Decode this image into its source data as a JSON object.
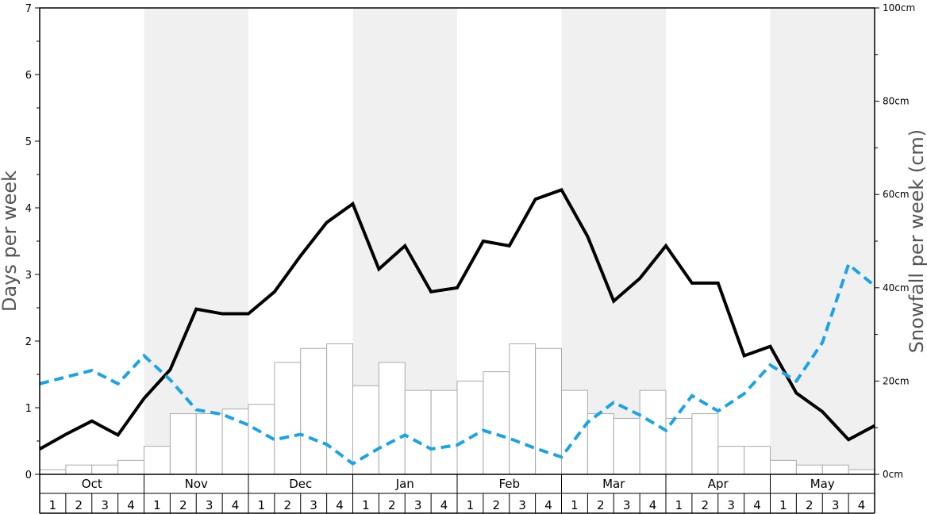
{
  "chart_data": {
    "type": "bar",
    "title": "",
    "left_axis": {
      "label": "Days per week",
      "ylim": [
        0,
        7
      ],
      "ticks": [
        "0",
        "1",
        "2",
        "3",
        "4",
        "5",
        "6",
        "7"
      ]
    },
    "right_axis": {
      "label": "Snowfall per week (cm)",
      "ylim": [
        0,
        100
      ],
      "ticks": [
        "0cm",
        "20cm",
        "40cm",
        "60cm",
        "80cm",
        "100cm"
      ]
    },
    "months": [
      "Oct",
      "Nov",
      "Dec",
      "Jan",
      "Feb",
      "Mar",
      "Apr",
      "May"
    ],
    "week_labels": [
      "1",
      "2",
      "3",
      "4"
    ],
    "colors": {
      "bar_fill": "#ffffff",
      "bar_stroke": "#aaaaaa",
      "shade": "#f0f0f0",
      "solid_line": "#000000",
      "dashed_line": "#1aa3e6"
    },
    "series": [
      {
        "kind": "bar",
        "axis": "right",
        "values": [
          1,
          2,
          2,
          3,
          6,
          13,
          13,
          14,
          15,
          24,
          27,
          28,
          19,
          24,
          18,
          18,
          20,
          22,
          28,
          27,
          18,
          13,
          12,
          18,
          12,
          13,
          6,
          6,
          3,
          2,
          2,
          1
        ]
      },
      {
        "kind": "line",
        "style": "solid",
        "axis": "left",
        "values": [
          0.38,
          0.6,
          0.8,
          0.59,
          1.14,
          1.57,
          2.48,
          2.41,
          2.41,
          2.74,
          3.28,
          3.78,
          4.06,
          3.08,
          3.43,
          2.74,
          2.8,
          3.5,
          3.43,
          4.13,
          4.27,
          3.57,
          2.6,
          2.94,
          3.43,
          2.87,
          2.87,
          1.78,
          1.92,
          1.22,
          0.94,
          0.52,
          0.73
        ]
      },
      {
        "kind": "line",
        "style": "dashed",
        "axis": "left",
        "values": [
          1.36,
          1.46,
          1.56,
          1.36,
          1.78,
          1.42,
          0.97,
          0.9,
          0.74,
          0.52,
          0.6,
          0.45,
          0.16,
          0.39,
          0.59,
          0.38,
          0.44,
          0.66,
          0.54,
          0.39,
          0.26,
          0.78,
          1.08,
          0.89,
          0.66,
          1.18,
          0.95,
          1.21,
          1.64,
          1.4,
          1.98,
          3.15,
          2.83
        ]
      }
    ]
  }
}
